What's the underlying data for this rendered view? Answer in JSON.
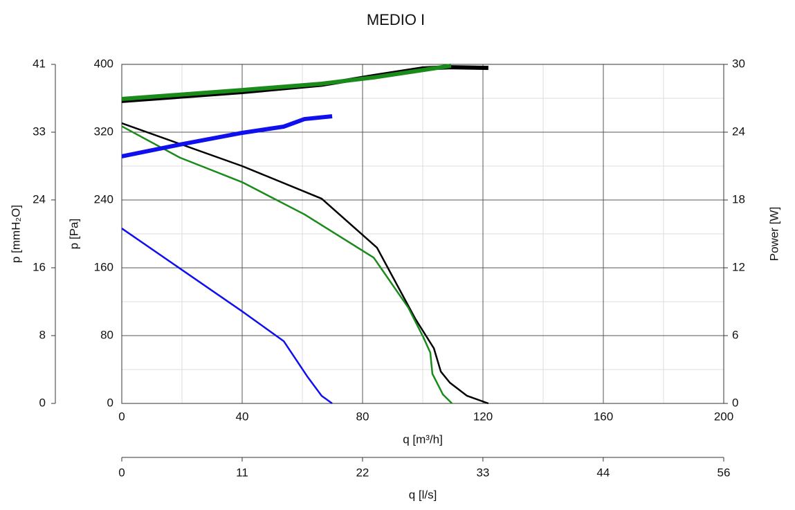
{
  "chart_data": {
    "type": "line",
    "title": "MEDIO I",
    "xlabel": "q [m³/h]",
    "ylabel": "p [Pa]",
    "y2label": "Power [W]",
    "xlim": [
      0,
      200
    ],
    "xticks": [
      0,
      40,
      80,
      120,
      160,
      200
    ],
    "xminor": [
      20,
      60,
      100,
      140,
      180
    ],
    "ylim": [
      0,
      400
    ],
    "yticks": [
      0,
      80,
      160,
      240,
      320,
      400
    ],
    "yminor": [
      40,
      120,
      200,
      280,
      360
    ],
    "y2lim": [
      0,
      30
    ],
    "y2ticks": [
      0,
      6,
      12,
      18,
      24,
      30
    ],
    "grid": true,
    "secondary_x": {
      "label": "q [l/s]",
      "lim": [
        0,
        55.56
      ],
      "ticks": [
        0,
        {
          "value": 11.11,
          "label": "11"
        },
        {
          "value": 22.22,
          "label": "22"
        },
        {
          "value": 33.33,
          "label": "33"
        },
        {
          "value": 44.44,
          "label": "44"
        },
        {
          "value": 55.56,
          "label": "56"
        }
      ]
    },
    "secondary_y": {
      "label": "p [mmH₂O]",
      "lim": [
        0,
        40.79
      ],
      "ticks": [
        0,
        {
          "value": 8.16,
          "label": "8"
        },
        {
          "value": 16.32,
          "label": "16"
        },
        {
          "value": 24.48,
          "label": "24"
        },
        {
          "value": 32.63,
          "label": "33"
        },
        {
          "value": 40.79,
          "label": "41"
        }
      ]
    },
    "series": [
      {
        "color": "#000000",
        "x": [
          0,
          40,
          66.4,
          84.8,
          97.5,
          103.7,
          106,
          109,
          114.7,
          121.8
        ],
        "values": [
          330.6,
          280,
          241.6,
          183.7,
          100,
          65,
          37.6,
          24.5,
          9,
          0
        ]
      },
      {
        "color": "#1a8a1a",
        "x": [
          0,
          19.3,
          40,
          60.7,
          83.7,
          95.2,
          100.2,
          102.5,
          103.2,
          106.7,
          109.7
        ],
        "values": [
          327,
          290,
          261,
          223,
          172,
          113,
          78,
          60,
          35,
          10.6,
          0
        ]
      },
      {
        "color": "#1010ee",
        "x": [
          0,
          40,
          53.8,
          61.8,
          66.4,
          69.9
        ],
        "values": [
          206.5,
          108.6,
          73.5,
          31,
          9,
          0
        ]
      },
      {
        "color": "#000000",
        "axis": "y2",
        "x": [
          0,
          40,
          66.4,
          83.7,
          99.8,
          109,
          121.8
        ],
        "values": [
          26.76,
          27.55,
          28.2,
          28.96,
          29.63,
          29.75,
          29.69
        ]
      },
      {
        "color": "#1a8a1a",
        "axis": "y2",
        "x": [
          0,
          40,
          66.4,
          83.7,
          97.5,
          109.4
        ],
        "values": [
          26.94,
          27.73,
          28.29,
          28.84,
          29.39,
          29.88
        ]
      },
      {
        "color": "#1010ee",
        "axis": "y2",
        "x": [
          0,
          19.3,
          40,
          53.8,
          60.7,
          69.9
        ],
        "values": [
          21.86,
          22.9,
          23.94,
          24.49,
          25.16,
          25.41
        ]
      }
    ]
  }
}
